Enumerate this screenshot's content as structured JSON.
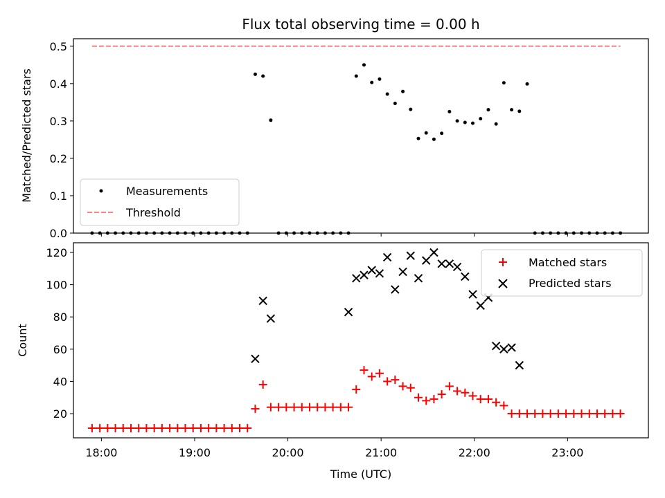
{
  "chart_data": [
    {
      "type": "scatter",
      "title": "Flux total observing time = 0.00 h",
      "xlabel": "",
      "ylabel": "Matched/Predicted stars",
      "ylim": [
        0,
        0.52
      ],
      "xlim": [
        "17:42",
        "23:52"
      ],
      "yticks": [
        "0.0",
        "0.1",
        "0.2",
        "0.3",
        "0.4",
        "0.5"
      ],
      "legend": {
        "placement": "lower-left",
        "entries": [
          "Measurements",
          "Threshold"
        ]
      },
      "threshold": {
        "name": "Threshold",
        "value": 0.5,
        "x_range": [
          "17:54",
          "23:34"
        ],
        "color": "#ff7f7f",
        "style": "dashed"
      },
      "series": [
        {
          "name": "Measurements",
          "color": "#000000",
          "marker": "dot",
          "x": [
            "17:54",
            "17:59",
            "18:04",
            "18:09",
            "18:14",
            "18:19",
            "18:24",
            "18:29",
            "18:34",
            "18:39",
            "18:44",
            "18:49",
            "18:54",
            "18:59",
            "19:04",
            "19:09",
            "19:14",
            "19:19",
            "19:24",
            "19:29",
            "19:34",
            "19:39",
            "19:44",
            "19:49",
            "19:54",
            "19:59",
            "20:04",
            "20:09",
            "20:14",
            "20:19",
            "20:24",
            "20:29",
            "20:34",
            "20:39",
            "20:44",
            "20:49",
            "20:54",
            "20:59",
            "21:04",
            "21:09",
            "21:14",
            "21:19",
            "21:24",
            "21:29",
            "21:34",
            "21:39",
            "21:44",
            "21:49",
            "21:54",
            "21:59",
            "22:04",
            "22:09",
            "22:14",
            "22:19",
            "22:24",
            "22:29",
            "22:34",
            "22:39",
            "22:44",
            "22:49",
            "22:54",
            "22:59",
            "23:04",
            "23:09",
            "23:14",
            "23:19",
            "23:24",
            "23:29",
            "23:34"
          ],
          "y": [
            0,
            0,
            0,
            0,
            0,
            0,
            0,
            0,
            0,
            0,
            0,
            0,
            0,
            0,
            0,
            0,
            0,
            0,
            0,
            0,
            0,
            0.425,
            0.42,
            0.302,
            0,
            0,
            0,
            0,
            0,
            0,
            0,
            0,
            0,
            0,
            0.42,
            0.45,
            0.403,
            0.412,
            0.372,
            0.347,
            0.379,
            0.331,
            0.253,
            0.268,
            0.251,
            0.267,
            0.325,
            0.3,
            0.296,
            0.294,
            0.306,
            0.33,
            0.292,
            0.402,
            0.33,
            0.326,
            0.399,
            0,
            0,
            0,
            0,
            0,
            0,
            0,
            0,
            0,
            0,
            0,
            0
          ]
        }
      ]
    },
    {
      "type": "scatter",
      "title": "",
      "xlabel": "Time (UTC)",
      "ylabel": "Count",
      "ylim": [
        5,
        126
      ],
      "xlim": [
        "17:42",
        "23:52"
      ],
      "xticks": [
        "18:00",
        "19:00",
        "20:00",
        "21:00",
        "22:00",
        "23:00"
      ],
      "yticks": [
        "20",
        "40",
        "60",
        "80",
        "100",
        "120"
      ],
      "legend": {
        "placement": "upper-right",
        "entries": [
          "Matched stars",
          "Predicted stars"
        ]
      },
      "series": [
        {
          "name": "Matched stars",
          "color": "#ff0000",
          "marker": "plus",
          "x": [
            "17:54",
            "17:59",
            "18:04",
            "18:09",
            "18:14",
            "18:19",
            "18:24",
            "18:29",
            "18:34",
            "18:39",
            "18:44",
            "18:49",
            "18:54",
            "18:59",
            "19:04",
            "19:09",
            "19:14",
            "19:19",
            "19:24",
            "19:29",
            "19:34",
            "19:39",
            "19:44",
            "19:49",
            "19:54",
            "19:59",
            "20:04",
            "20:09",
            "20:14",
            "20:19",
            "20:24",
            "20:29",
            "20:34",
            "20:39",
            "20:44",
            "20:49",
            "20:54",
            "20:59",
            "21:04",
            "21:09",
            "21:14",
            "21:19",
            "21:24",
            "21:29",
            "21:34",
            "21:39",
            "21:44",
            "21:49",
            "21:54",
            "21:59",
            "22:04",
            "22:09",
            "22:14",
            "22:19",
            "22:24",
            "22:29",
            "22:34",
            "22:39",
            "22:44",
            "22:49",
            "22:54",
            "22:59",
            "23:04",
            "23:09",
            "23:14",
            "23:19",
            "23:24",
            "23:29",
            "23:34"
          ],
          "y": [
            11,
            11,
            11,
            11,
            11,
            11,
            11,
            11,
            11,
            11,
            11,
            11,
            11,
            11,
            11,
            11,
            11,
            11,
            11,
            11,
            11,
            23,
            38,
            24,
            24,
            24,
            24,
            24,
            24,
            24,
            24,
            24,
            24,
            24,
            35,
            47,
            43,
            45,
            40,
            41,
            37,
            36,
            30,
            28,
            29,
            32,
            37,
            34,
            33,
            31,
            29,
            29,
            27,
            25,
            20,
            20,
            20,
            20,
            20,
            20,
            20,
            20,
            20,
            20,
            20,
            20,
            20,
            20,
            20
          ]
        },
        {
          "name": "Predicted stars",
          "color": "#000000",
          "marker": "x",
          "x": [
            "19:39",
            "19:44",
            "19:49",
            "20:39",
            "20:44",
            "20:49",
            "20:54",
            "20:59",
            "21:04",
            "21:09",
            "21:14",
            "21:19",
            "21:24",
            "21:29",
            "21:34",
            "21:39",
            "21:44",
            "21:49",
            "21:54",
            "21:59",
            "22:04",
            "22:09",
            "22:14",
            "22:19",
            "22:24",
            "22:29",
            "22:34"
          ],
          "y": [
            54,
            90,
            79,
            83,
            104,
            106,
            109,
            107,
            117,
            97,
            108,
            118,
            104,
            115,
            120,
            113,
            113,
            111,
            105,
            94,
            87,
            92,
            62,
            60,
            61,
            50,
            null
          ]
        }
      ]
    }
  ]
}
